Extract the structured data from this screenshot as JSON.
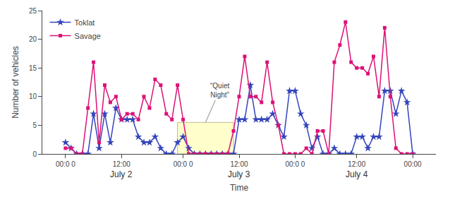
{
  "chart_data": {
    "type": "line",
    "xlabel": "Time",
    "ylabel": "Number of vehicles",
    "categories": [
      "00:0 0",
      null,
      null,
      null,
      null,
      null,
      null,
      null,
      null,
      null,
      "12:00",
      null,
      null,
      null,
      null,
      null,
      null,
      null,
      null,
      null,
      null,
      "00:0 0",
      null,
      null,
      null,
      null,
      null,
      null,
      null,
      null,
      null,
      "12:00",
      null,
      null,
      null,
      null,
      null,
      null,
      null,
      null,
      null,
      "00:0 0",
      null,
      null,
      null,
      null,
      null,
      null,
      null,
      null,
      null,
      null,
      "12:00",
      null,
      null,
      null,
      null,
      null,
      null,
      null,
      null,
      null,
      "00:00"
    ],
    "series": [
      {
        "name": "Toklat",
        "color": "#3344bb",
        "marker": "star",
        "values": [
          2,
          1,
          0,
          0,
          0,
          7,
          1,
          7,
          2,
          8,
          6,
          6,
          6,
          3,
          2,
          2,
          3,
          1,
          0,
          0,
          2,
          3,
          1,
          0,
          0,
          0,
          0,
          0,
          0,
          0,
          0,
          6,
          6,
          12,
          6,
          6,
          6,
          7,
          5,
          3,
          11,
          11,
          7,
          5,
          1,
          3,
          0,
          0,
          1,
          0,
          0,
          0,
          3,
          3,
          1,
          3,
          3,
          11,
          11,
          7,
          11,
          9,
          0
        ]
      },
      {
        "name": "Savage",
        "color": "#dd1177",
        "marker": "square",
        "values": [
          1,
          1,
          0,
          0,
          8,
          16,
          2,
          12,
          9,
          10,
          6,
          7,
          7,
          6,
          10,
          8,
          13,
          12,
          7,
          6,
          12,
          6,
          0,
          0,
          0,
          0,
          0,
          0,
          0,
          0,
          4,
          10,
          17,
          10,
          10,
          9,
          16,
          9,
          5,
          0,
          0,
          0,
          0,
          1,
          0,
          4,
          4,
          0,
          16,
          19,
          23,
          16,
          15,
          15,
          14,
          17,
          10,
          22,
          10,
          1,
          0,
          0,
          0
        ]
      }
    ],
    "ylim": [
      0,
      25
    ],
    "yticks": [
      0,
      5,
      10,
      15,
      20,
      25
    ],
    "grid": false,
    "legend": "upper left",
    "day_labels": [
      "July 2",
      "July 3",
      "July 4"
    ],
    "highlight": {
      "label": "“Quiet\nNight”",
      "x": [
        20,
        30
      ],
      "y": [
        0,
        5.5
      ],
      "color": "#ffffcc",
      "edge_color": "#bbbb99"
    }
  }
}
